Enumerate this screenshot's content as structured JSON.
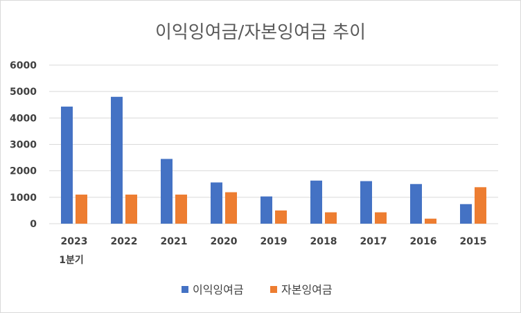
{
  "chart_data": {
    "type": "bar",
    "title": "이익잉여금/자본잉여금 추이",
    "categories": [
      [
        "2023",
        "1분기"
      ],
      [
        "2022"
      ],
      [
        "2021"
      ],
      [
        "2020"
      ],
      [
        "2019"
      ],
      [
        "2018"
      ],
      [
        "2017"
      ],
      [
        "2016"
      ],
      [
        "2015"
      ]
    ],
    "series": [
      {
        "name": "이익잉여금",
        "color": "#4472c4",
        "values": [
          4430,
          4800,
          2450,
          1560,
          1030,
          1630,
          1610,
          1500,
          740
        ]
      },
      {
        "name": "자본잉여금",
        "color": "#ed7d31",
        "values": [
          1100,
          1100,
          1100,
          1190,
          500,
          430,
          430,
          190,
          1380
        ]
      }
    ],
    "ylim": [
      0,
      6000
    ],
    "yticks": [
      0,
      1000,
      2000,
      3000,
      4000,
      5000,
      6000
    ],
    "grid": true,
    "legend_position": "bottom"
  }
}
